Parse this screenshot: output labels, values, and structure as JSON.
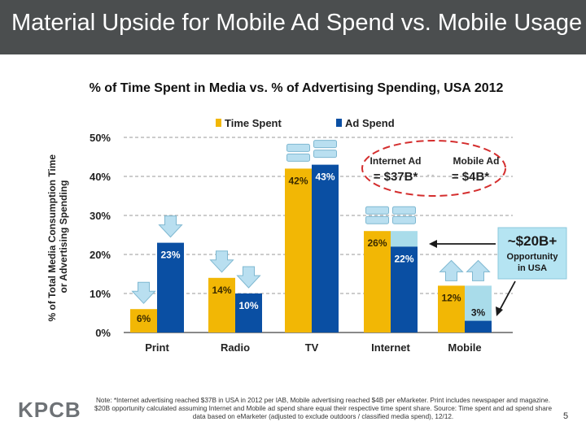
{
  "slide": {
    "title": "Material Upside for Mobile Ad Spend vs. Mobile Usage",
    "footnote": "Note: *Internet advertising reached $37B in USA in 2012 per IAB, Mobile advertising reached $4B per eMarketer. Print includes newspaper and magazine. $20B opportunity calculated assuming Internet and Mobile ad spend share equal their respective time spent share. Source: Time spent and ad spend share data based on eMarketer (adjusted to exclude outdoors / classified media spend), 12/12.",
    "logo": "KPCB",
    "page_number": "5"
  },
  "colors": {
    "header_bg": "#4b4e4f",
    "time_spent": "#f2b705",
    "ad_spend": "#0a4fa3",
    "ad_spend_gap": "#a9dcea",
    "callout_bg": "#b5e4f2",
    "arrow": "#b9dff0",
    "ellipse": "#d42e2e"
  },
  "chart_data": {
    "type": "bar",
    "title": "% of Time Spent in Media vs. % of Advertising Spending, USA 2012",
    "ylabel": "% of Total Media Consumption Time or Advertising Spending",
    "xlabel": "",
    "categories": [
      "Print",
      "Radio",
      "TV",
      "Internet",
      "Mobile"
    ],
    "series": [
      {
        "name": "Time Spent",
        "values": [
          6,
          14,
          42,
          26,
          12
        ],
        "labels": [
          "6%",
          "14%",
          "42%",
          "26%",
          "12%"
        ],
        "color": "#f2b705"
      },
      {
        "name": "Ad Spend",
        "values": [
          23,
          10,
          43,
          22,
          3
        ],
        "labels": [
          "23%",
          "10%",
          "43%",
          "22%",
          "3%"
        ],
        "color": "#0a4fa3"
      }
    ],
    "ylim": [
      0,
      50
    ],
    "yticks": [
      0,
      10,
      20,
      30,
      40,
      50
    ],
    "ytick_labels": [
      "0%",
      "10%",
      "20%",
      "30%",
      "40%",
      "50%"
    ],
    "grid": true,
    "legend": "top-center",
    "trend_indicators": [
      {
        "category": "Print",
        "time_spent": "down",
        "ad_spend": "down"
      },
      {
        "category": "Radio",
        "time_spent": "down",
        "ad_spend": "down"
      },
      {
        "category": "TV",
        "time_spent": "flat",
        "ad_spend": "flat"
      },
      {
        "category": "Internet",
        "time_spent": "flat",
        "ad_spend": "flat"
      },
      {
        "category": "Mobile",
        "time_spent": "up",
        "ad_spend": "up"
      }
    ],
    "opportunity_gap": [
      {
        "category": "Internet",
        "from": 22,
        "to": 26
      },
      {
        "category": "Mobile",
        "from": 3,
        "to": 12
      }
    ],
    "annotations": {
      "internet_ad_title": "Internet Ad",
      "internet_ad_value": "= $37B*",
      "mobile_ad_title": "Mobile Ad",
      "mobile_ad_value": "= $4B*",
      "separator": "- -",
      "callout_value": "~$20B+",
      "callout_line1": "Opportunity",
      "callout_line2": "in USA"
    }
  }
}
